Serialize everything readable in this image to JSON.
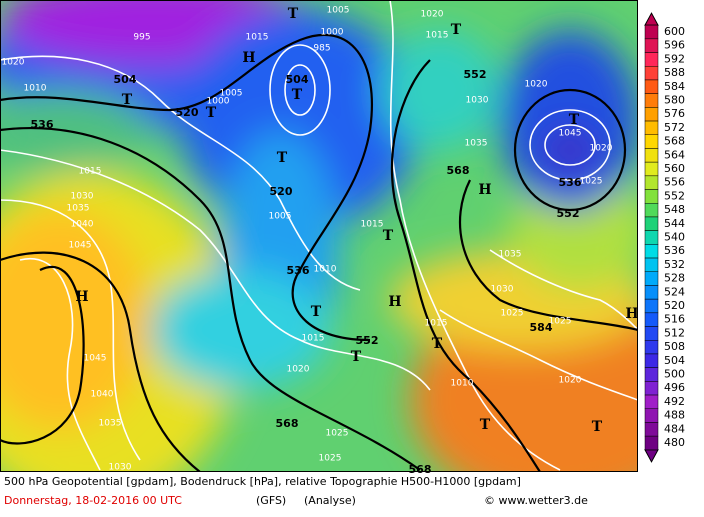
{
  "map": {
    "footer": {
      "description": "500 hPa Geopotential [gpdam], Bodendruck [hPa], relative Topographie H500-H1000 [gpdam]",
      "date": "Donnerstag, 18-02-2016  00 UTC",
      "model": "(GFS)",
      "run": "(Analyse)",
      "credit": "© www.wetter3.de"
    },
    "colorbar": {
      "levels": [
        600,
        596,
        592,
        588,
        584,
        580,
        576,
        572,
        568,
        564,
        560,
        556,
        552,
        548,
        544,
        540,
        536,
        532,
        528,
        524,
        520,
        516,
        512,
        508,
        504,
        500,
        496,
        492,
        488,
        484,
        480
      ]
    },
    "geopotential_labels": [
      "504",
      "520",
      "536",
      "504",
      "552",
      "520",
      "568",
      "536",
      "552",
      "536",
      "552",
      "584",
      "568",
      "568"
    ],
    "pressure_labels": [
      "1020",
      "1010",
      "995",
      "1015",
      "1005",
      "1000",
      "985",
      "1020",
      "1015",
      "1000",
      "1005",
      "1030",
      "1020",
      "1035",
      "1045",
      "1020",
      "1025",
      "1015",
      "1030",
      "1035",
      "1040",
      "1045",
      "1005",
      "1015",
      "1010",
      "1035",
      "1030",
      "1025",
      "1025",
      "1015",
      "1015",
      "1020",
      "1045",
      "1040",
      "1035",
      "1010",
      "1020",
      "1025",
      "1025",
      "1030"
    ],
    "centers": [
      "H",
      "T",
      "T",
      "T",
      "T",
      "T",
      "T",
      "T",
      "H",
      "H",
      "H",
      "T",
      "T",
      "T",
      "T",
      "T",
      "H",
      "T"
    ]
  }
}
